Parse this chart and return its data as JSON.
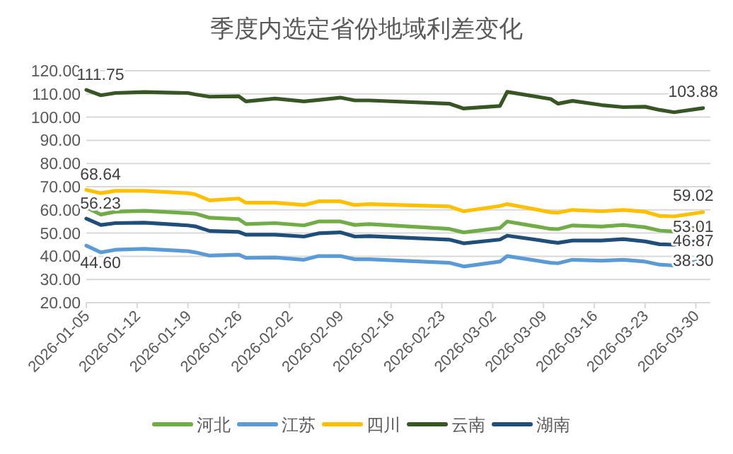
{
  "chart_data": {
    "type": "line",
    "title": "季度内选定省份地域利差变化",
    "x": [
      "2026-01-05",
      "2026-01-07",
      "2026-01-09",
      "2026-01-13",
      "2026-01-19",
      "2026-01-20",
      "2026-01-22",
      "2026-01-26",
      "2026-01-27",
      "2026-01-31",
      "2026-02-04",
      "2026-02-06",
      "2026-02-09",
      "2026-02-11",
      "2026-02-13",
      "2026-02-24",
      "2026-02-26",
      "2026-03-03",
      "2026-03-04",
      "2026-03-10",
      "2026-03-11",
      "2026-03-13",
      "2026-03-17",
      "2026-03-20",
      "2026-03-23",
      "2026-03-25",
      "2026-03-27",
      "2026-03-31"
    ],
    "series": [
      {
        "name": "河北",
        "color": "#70ad47",
        "values": [
          61.0,
          58.0,
          59.2,
          59.6,
          58.6,
          58.4,
          56.6,
          56.0,
          53.9,
          54.3,
          53.3,
          55.0,
          55.0,
          53.5,
          53.9,
          51.8,
          50.3,
          52.2,
          55.0,
          51.8,
          51.7,
          53.3,
          52.8,
          53.5,
          52.5,
          51.1,
          50.7,
          53.01
        ],
        "value_labels": [
          null,
          null,
          null,
          null,
          null,
          null,
          null,
          null,
          null,
          null,
          null,
          null,
          null,
          null,
          null,
          null,
          null,
          null,
          null,
          null,
          null,
          null,
          null,
          null,
          null,
          null,
          null,
          "53.01"
        ]
      },
      {
        "name": "江苏",
        "color": "#5b9bd5",
        "values": [
          44.6,
          41.7,
          42.8,
          43.2,
          42.2,
          41.7,
          40.3,
          40.7,
          39.3,
          39.5,
          38.5,
          40.1,
          40.1,
          38.7,
          38.7,
          37.2,
          35.6,
          37.7,
          40.1,
          37.2,
          37.0,
          38.5,
          38.1,
          38.5,
          37.7,
          36.4,
          36.0,
          38.3
        ],
        "value_labels": [
          "44.60",
          null,
          null,
          null,
          null,
          null,
          null,
          null,
          null,
          null,
          null,
          null,
          null,
          null,
          null,
          null,
          null,
          null,
          null,
          null,
          null,
          null,
          null,
          null,
          null,
          null,
          null,
          "38.30"
        ]
      },
      {
        "name": "四川",
        "color": "#ffc000",
        "values": [
          68.64,
          67.2,
          68.2,
          68.2,
          67.2,
          66.7,
          64.1,
          64.9,
          63.1,
          63.1,
          62.1,
          63.7,
          63.7,
          62.1,
          62.5,
          61.5,
          59.4,
          61.7,
          62.5,
          59.0,
          58.8,
          60.0,
          59.4,
          60.0,
          59.2,
          57.4,
          57.2,
          59.02
        ],
        "value_labels": [
          "68.64",
          null,
          null,
          null,
          null,
          null,
          null,
          null,
          null,
          null,
          null,
          null,
          null,
          null,
          null,
          null,
          null,
          null,
          null,
          null,
          null,
          null,
          null,
          null,
          null,
          null,
          null,
          "59.02"
        ]
      },
      {
        "name": "云南",
        "color": "#375623",
        "values": [
          111.75,
          109.4,
          110.4,
          110.8,
          110.4,
          109.8,
          108.8,
          109.0,
          106.8,
          108.0,
          106.8,
          107.4,
          108.4,
          107.2,
          107.2,
          105.8,
          103.7,
          104.8,
          110.9,
          107.8,
          105.8,
          107.0,
          105.2,
          104.3,
          104.5,
          103.1,
          102.1,
          103.88
        ],
        "value_labels": [
          "111.75",
          null,
          null,
          null,
          null,
          null,
          null,
          null,
          null,
          null,
          null,
          null,
          null,
          null,
          null,
          null,
          null,
          null,
          null,
          null,
          null,
          null,
          null,
          null,
          null,
          null,
          null,
          "103.88"
        ]
      },
      {
        "name": "湖南",
        "color": "#1f4e79",
        "values": [
          56.23,
          53.5,
          54.3,
          54.5,
          53.3,
          52.9,
          50.9,
          50.5,
          49.3,
          49.3,
          48.5,
          49.9,
          50.3,
          48.5,
          48.7,
          47.2,
          45.6,
          47.2,
          48.9,
          46.2,
          45.8,
          46.8,
          46.8,
          47.4,
          46.4,
          45.2,
          45.0,
          46.87
        ],
        "value_labels": [
          "56.23",
          null,
          null,
          null,
          null,
          null,
          null,
          null,
          null,
          null,
          null,
          null,
          null,
          null,
          null,
          null,
          null,
          null,
          null,
          null,
          null,
          null,
          null,
          null,
          null,
          null,
          null,
          "46.87"
        ]
      }
    ],
    "xlim": [
      "2026-01-05",
      "2026-04-01"
    ],
    "xticks": [
      "2026-01-05",
      "2026-01-12",
      "2026-01-19",
      "2026-01-26",
      "2026-02-02",
      "2026-02-09",
      "2026-02-16",
      "2026-02-23",
      "2026-03-02",
      "2026-03-09",
      "2026-03-16",
      "2026-03-23",
      "2026-03-30"
    ],
    "ylim": [
      20,
      120
    ],
    "yticks": [
      {
        "value": 20,
        "label": "20.00"
      },
      {
        "value": 30,
        "label": "30.00"
      },
      {
        "value": 40,
        "label": "40.00"
      },
      {
        "value": 50,
        "label": "50.00"
      },
      {
        "value": 60,
        "label": "60.00"
      },
      {
        "value": 70,
        "label": "70.00"
      },
      {
        "value": 80,
        "label": "80.00"
      },
      {
        "value": 90,
        "label": "90.00"
      },
      {
        "value": 100,
        "label": "100.00"
      },
      {
        "value": 110,
        "label": "110.00"
      },
      {
        "value": 120,
        "label": "120.00"
      }
    ],
    "grid": "y",
    "legend": "bottom",
    "marker": "none",
    "line_style": "solid"
  }
}
